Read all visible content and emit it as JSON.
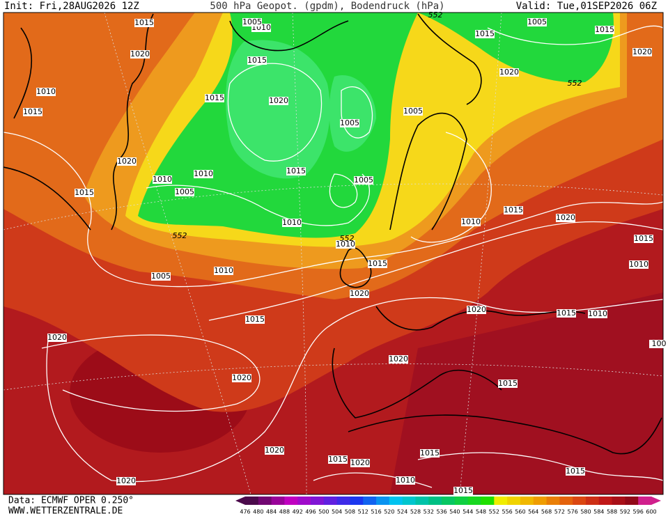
{
  "header": {
    "init": "Init: Fri,28AUG2026 12Z",
    "title": "500 hPa Geopot. (gpdm), Bodendruck (hPa)",
    "valid": "Valid: Tue,01SEP2026 06Z"
  },
  "map": {
    "isobar_labels": [
      1015,
      1020,
      1010,
      1015,
      1020,
      1010,
      1015,
      1005,
      1010,
      1015,
      1015,
      1010,
      1005,
      1020,
      1005,
      1015,
      1005,
      1010,
      1010,
      1015,
      1010,
      1005,
      1020,
      1015,
      1020,
      1020,
      1020,
      1020,
      1015,
      1010,
      1015,
      1020,
      1015,
      1020,
      1015,
      1010,
      1015,
      1020,
      1015,
      1020,
      1015,
      1010,
      1015,
      1010,
      1005,
      1020,
      1005,
      1015,
      1020,
      1015,
      100
    ],
    "contour_labels": [
      552,
      552,
      552,
      552
    ]
  },
  "footer": {
    "source": "Data: ECMWF OPER 0.250°",
    "site": "WWW.WETTERZENTRALE.DE"
  },
  "legend": {
    "values": [
      476,
      480,
      484,
      488,
      492,
      496,
      500,
      504,
      508,
      512,
      516,
      520,
      524,
      528,
      532,
      536,
      540,
      544,
      548,
      552,
      556,
      560,
      564,
      568,
      572,
      576,
      580,
      584,
      588,
      592,
      596,
      600
    ]
  }
}
